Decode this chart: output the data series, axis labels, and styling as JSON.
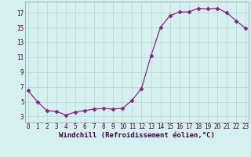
{
  "x": [
    0,
    1,
    2,
    3,
    4,
    5,
    6,
    7,
    8,
    9,
    10,
    11,
    12,
    13,
    14,
    15,
    16,
    17,
    18,
    19,
    20,
    21,
    22,
    23
  ],
  "y": [
    6.5,
    5.0,
    3.8,
    3.7,
    3.2,
    3.6,
    3.8,
    4.0,
    4.1,
    4.0,
    4.1,
    5.2,
    6.8,
    11.2,
    15.0,
    16.6,
    17.1,
    17.1,
    17.6,
    17.5,
    17.6,
    17.0,
    15.9,
    14.9
  ],
  "line_color": "#882288",
  "marker": "D",
  "markersize": 2.5,
  "bg_color": "#d6f0f0",
  "grid_color": "#b8dada",
  "xlabel": "Windchill (Refroidissement éolien,°C)",
  "xlabel_fontsize": 6.5,
  "ytick_labels": [
    "3",
    "5",
    "7",
    "9",
    "11",
    "13",
    "15",
    "17"
  ],
  "ytick_vals": [
    3,
    5,
    7,
    9,
    11,
    13,
    15,
    17
  ],
  "xtick_vals": [
    0,
    1,
    2,
    3,
    4,
    5,
    6,
    7,
    8,
    9,
    10,
    11,
    12,
    13,
    14,
    15,
    16,
    17,
    18,
    19,
    20,
    21,
    22,
    23
  ],
  "xlim": [
    -0.3,
    23.3
  ],
  "ylim": [
    2.2,
    18.5
  ],
  "tick_fontsize": 5.5,
  "spine_color": "#999999"
}
